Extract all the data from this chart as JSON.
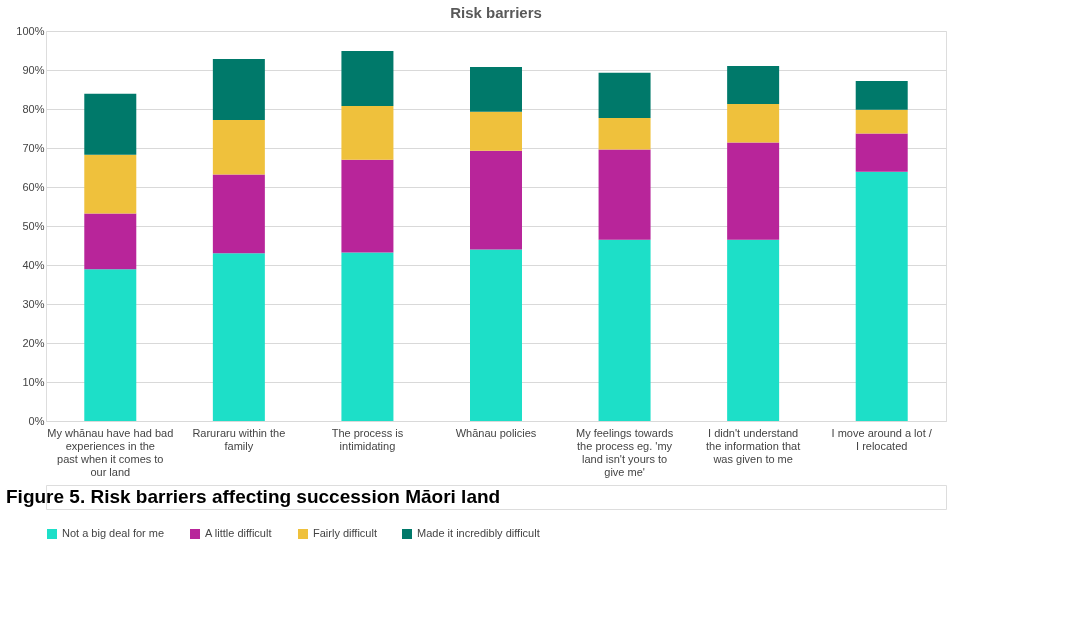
{
  "chart_data": {
    "type": "bar",
    "title": "Risk barriers",
    "stacked": true,
    "categories": [
      "My whānau have had bad experiences in the past when it comes to our land",
      "Raruraru within the family",
      "The process is intimidating",
      "Whānau policies",
      "My feelings towards the process eg. 'my land isn't yours to give me'",
      "I didn't understand the information that was given to me",
      "I move around a lot / I relocated"
    ],
    "series": [
      {
        "name": "Not a big deal for me",
        "color": "#1ddfc8",
        "values": [
          38.9,
          43.0,
          43.2,
          44.0,
          46.5,
          46.5,
          63.9
        ]
      },
      {
        "name": "A little difficult",
        "color": "#b8259a",
        "values": [
          14.3,
          20.2,
          23.8,
          25.3,
          23.1,
          24.9,
          9.8
        ]
      },
      {
        "name": "Fairly difficult",
        "color": "#efc13c",
        "values": [
          15.1,
          14.0,
          13.8,
          10.0,
          8.1,
          9.9,
          6.1
        ]
      },
      {
        "name": "Made it incredibly difficult",
        "color": "#00796a",
        "values": [
          15.6,
          15.6,
          14.1,
          11.5,
          11.6,
          9.7,
          7.4
        ]
      }
    ],
    "ylim": [
      0,
      100
    ],
    "yticks": [
      {
        "value": 0,
        "label": "0%"
      },
      {
        "value": 10,
        "label": "10%"
      },
      {
        "value": 20,
        "label": "20%"
      },
      {
        "value": 30,
        "label": "30%"
      },
      {
        "value": 40,
        "label": "40%"
      },
      {
        "value": 50,
        "label": "50%"
      },
      {
        "value": 60,
        "label": "60%"
      },
      {
        "value": 70,
        "label": "70%"
      },
      {
        "value": 80,
        "label": "80%"
      },
      {
        "value": 90,
        "label": "90%"
      },
      {
        "value": 100,
        "label": "100%"
      }
    ],
    "grid": "y",
    "legend": "bottom",
    "annotations": [
      "Figure 5. Risk barriers affecting succession Māori land"
    ]
  }
}
